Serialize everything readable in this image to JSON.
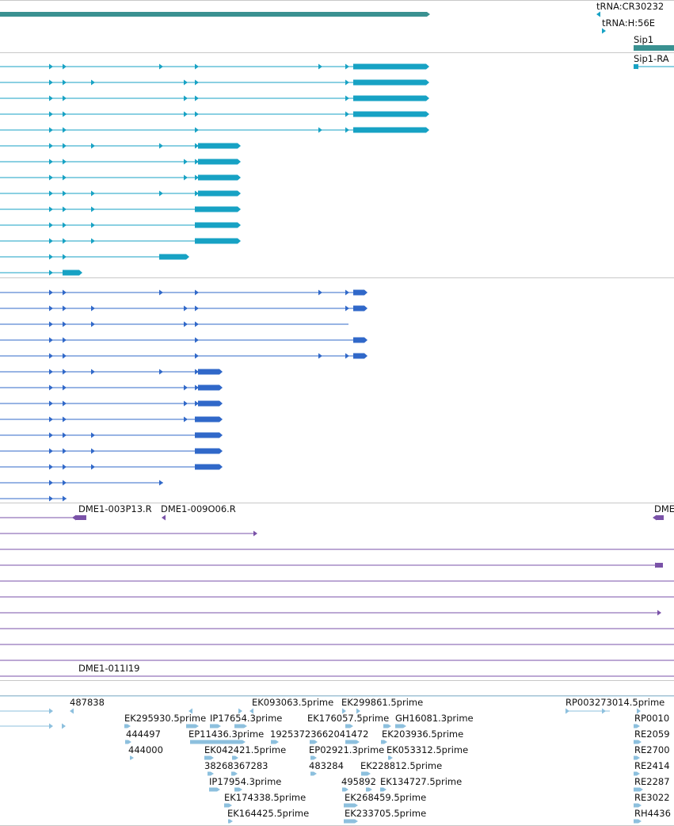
{
  "colors": {
    "gene": "#3a9191",
    "transcript_a": "#17a2c4",
    "transcript_b": "#3068c9",
    "bac": "#7a52a8",
    "est": "#8dc0de",
    "divider": "#c8c8c8"
  },
  "genes": {
    "labels": [
      "tRNA:CR30232",
      "tRNA:H:56E",
      "Sip1",
      "Sip1-RA"
    ]
  },
  "bac_clones": {
    "labels": [
      "DME1-003P13.R",
      "DME1-009O06.R",
      "DME",
      "DME1-011I19"
    ]
  },
  "est_alignments": {
    "row1": [
      "487838",
      "EK093063.5prime",
      "EK299861.5prime",
      "RP003273014.5prime"
    ],
    "row2": [
      "EK295930.5prime",
      "IP17654.3prime",
      "EK176057.5prime",
      "GH16081.3prime",
      "RP0010"
    ],
    "row3": [
      "444497",
      "EP11436.3prime",
      "19253723662041472",
      "EK203936.5prime",
      "RE2059"
    ],
    "row4": [
      "444000",
      "EK042421.5prime",
      "EP02921.3prime",
      "EK053312.5prime",
      "RE2700"
    ],
    "row5": [
      "38268367283",
      "483284",
      "EK228812.5prime",
      "RE2414"
    ],
    "row6": [
      "IP17954.3prime",
      "495892",
      "EK134727.5prime",
      "RE2287"
    ],
    "row7": [
      "EK174338.5prime",
      "EK268459.5prime",
      "RE3022"
    ],
    "row8": [
      "EK164425.5prime",
      "EK233705.5prime",
      "RH4436"
    ]
  }
}
